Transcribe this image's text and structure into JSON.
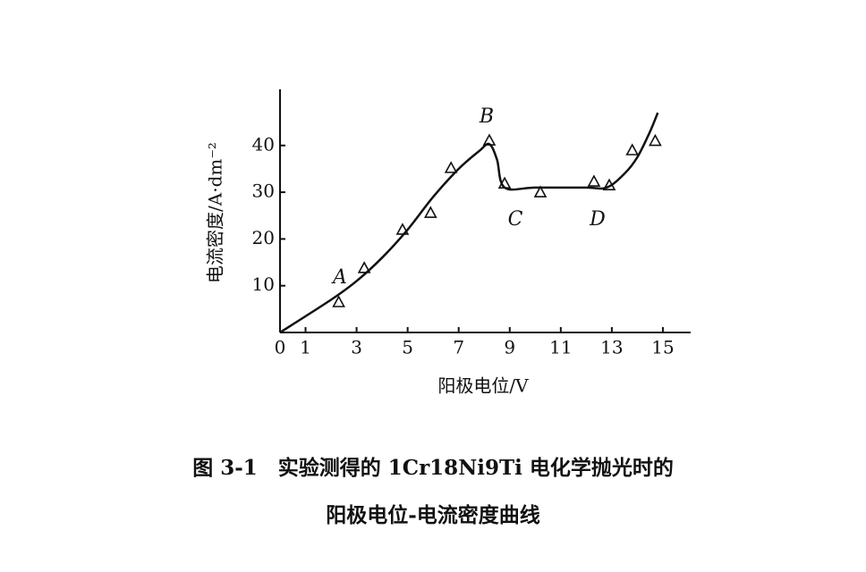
{
  "chart_data": {
    "type": "scatter",
    "xlabel": "阳极电位/V",
    "ylabel": "电流密度/A·dm⁻²",
    "caption": [
      "图 3-1　实验测得的 1Cr18Ni9Ti 电化学抛光时的",
      "阳极电位-电流密度曲线"
    ],
    "annotations": [
      "A",
      "B",
      "C",
      "D"
    ],
    "xlim": [
      0,
      16
    ],
    "ylim": [
      0,
      52
    ],
    "xticks": [
      0,
      1,
      3,
      5,
      7,
      9,
      11,
      13,
      15
    ],
    "yticks": [
      10,
      20,
      30,
      40
    ],
    "series": [
      {
        "type": "line",
        "color": "#111",
        "x": [
          0,
          2,
          3,
          4,
          5,
          6,
          7,
          7.8,
          8.2,
          8.5,
          8.8,
          10,
          12,
          12.8,
          13.5,
          14,
          14.5,
          14.8
        ],
        "values": [
          0,
          7,
          11,
          16,
          22,
          29,
          35,
          38.8,
          40.3,
          37,
          31,
          31,
          31,
          31,
          34,
          37.5,
          43,
          47
        ]
      },
      {
        "type": "scatter",
        "color": "#111",
        "x": [
          2.3,
          3.3,
          4.8,
          5.9,
          6.7,
          8.2,
          8.8,
          10.2,
          12.3,
          12.9,
          13.8,
          14.7
        ],
        "values": [
          6.5,
          13.8,
          22,
          25.6,
          35.2,
          41.1,
          31.9,
          30,
          32.3,
          31.5,
          39,
          41
        ]
      }
    ]
  }
}
